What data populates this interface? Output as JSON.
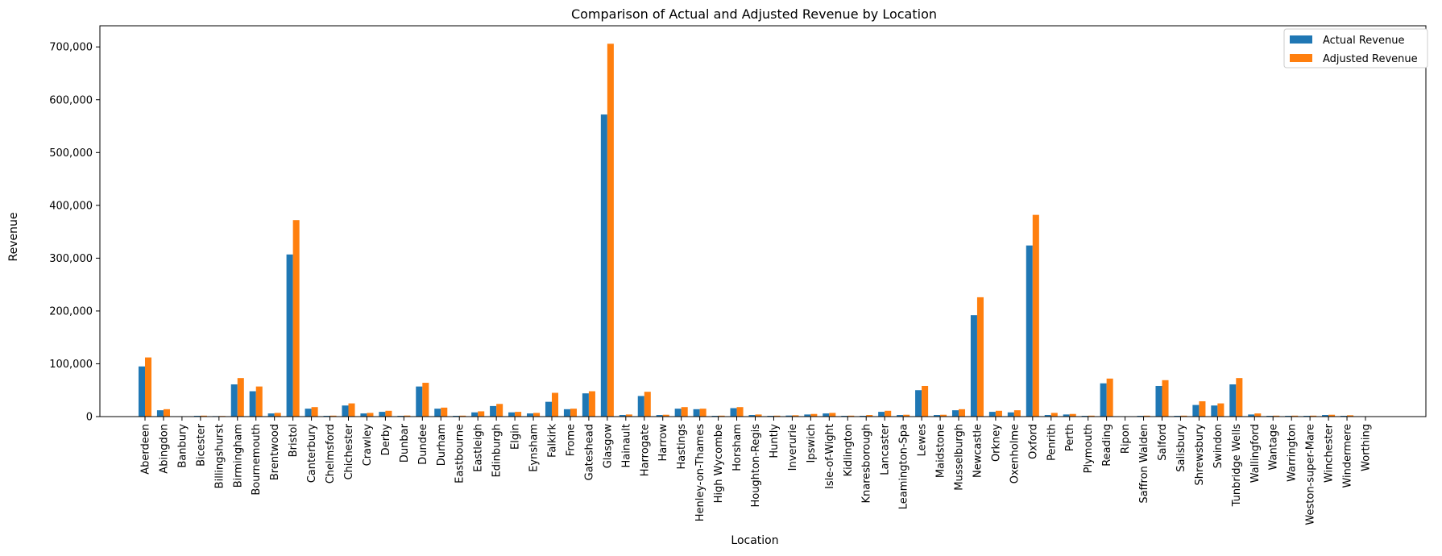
{
  "chart_data": {
    "type": "bar",
    "title": "Comparison of Actual and Adjusted Revenue by Location",
    "xlabel": "Location",
    "ylabel": "Revenue",
    "ylim": [
      0,
      740000
    ],
    "yticks": [
      0,
      100000,
      200000,
      300000,
      400000,
      500000,
      600000,
      700000
    ],
    "ytick_labels": [
      "0",
      "100,000",
      "200,000",
      "300,000",
      "400,000",
      "500,000",
      "600,000",
      "700,000"
    ],
    "legend_position": "top-right",
    "categories": [
      "Aberdeen",
      "Abingdon",
      "Banbury",
      "Bicester",
      "Billingshurst",
      "Birmingham",
      "Bournemouth",
      "Brentwood",
      "Bristol",
      "Canterbury",
      "Chelmsford",
      "Chichester",
      "Crawley",
      "Derby",
      "Dunbar",
      "Dundee",
      "Durham",
      "Eastbourne",
      "Eastleigh",
      "Edinburgh",
      "Elgin",
      "Eynsham",
      "Falkirk",
      "Frome",
      "Gateshead",
      "Glasgow",
      "Hainault",
      "Harrogate",
      "Harrow",
      "Hastings",
      "Henley-on-Thames",
      "High Wycombe",
      "Horsham",
      "Houghton-Regis",
      "Huntly",
      "Inverurie",
      "Ipswich",
      "Isle-of-Wight",
      "Kidlington",
      "Knaresborough",
      "Lancaster",
      "Leamington-Spa",
      "Lewes",
      "Maidstone",
      "Musselburgh",
      "Newcastle",
      "Orkney",
      "Oxenholme",
      "Oxford",
      "Penrith",
      "Perth",
      "Plymouth",
      "Reading",
      "Ripon",
      "Saffron Walden",
      "Salford",
      "Salisbury",
      "Shrewsbury",
      "Swindon",
      "Tunbridge Wells",
      "Wallingford",
      "Wantage",
      "Warrington",
      "Weston-super-Mare",
      "Winchester",
      "Windermere",
      "Worthing"
    ],
    "series": [
      {
        "name": "Actual Revenue",
        "color": "#1f77b4",
        "values": [
          95000,
          12000,
          500,
          1500,
          1000,
          61000,
          48000,
          6000,
          307000,
          15000,
          1500,
          21000,
          6000,
          9000,
          1500,
          57000,
          15000,
          1500,
          8000,
          20000,
          8000,
          6000,
          28000,
          14000,
          44000,
          572000,
          3000,
          39000,
          3000,
          15000,
          14000,
          1500,
          16000,
          3000,
          1500,
          2000,
          4000,
          6000,
          1500,
          1500,
          9000,
          3000,
          50000,
          3000,
          12000,
          192000,
          9000,
          8000,
          324000,
          3000,
          4000,
          1500,
          63000,
          500,
          1500,
          58000,
          1500,
          22000,
          21000,
          61000,
          4000,
          1500,
          1500,
          1500,
          3000,
          1500,
          500
        ]
      },
      {
        "name": "Adjusted Revenue",
        "color": "#ff7f0e",
        "values": [
          112000,
          14000,
          500,
          1800,
          1200,
          73000,
          57000,
          7000,
          372000,
          18000,
          1800,
          25000,
          7000,
          11000,
          2000,
          64000,
          17000,
          1800,
          10000,
          24000,
          9000,
          7000,
          45000,
          15000,
          48000,
          706000,
          4000,
          47000,
          3500,
          18000,
          15000,
          1800,
          18000,
          4000,
          1800,
          2500,
          5000,
          7000,
          1800,
          3000,
          11000,
          3500,
          58000,
          3500,
          14000,
          226000,
          11000,
          12000,
          382000,
          7000,
          5000,
          1800,
          72000,
          500,
          1800,
          69000,
          1800,
          29000,
          25000,
          73000,
          6000,
          1800,
          1800,
          1800,
          3500,
          2500,
          500
        ]
      }
    ]
  }
}
